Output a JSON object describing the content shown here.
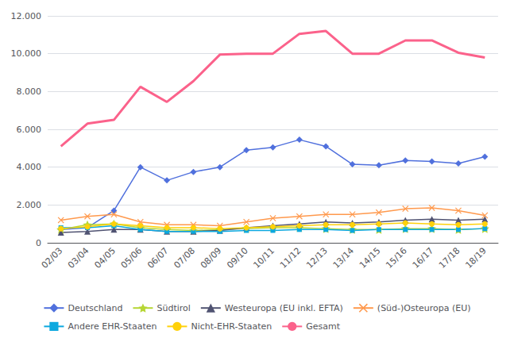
{
  "chart_data": {
    "type": "line",
    "categories": [
      "02/03",
      "03/04",
      "04/05",
      "05/06",
      "06/07",
      "07/08",
      "08/09",
      "09/10",
      "10/11",
      "11/12",
      "12/13",
      "13/14",
      "14/15",
      "15/16",
      "16/17",
      "17/18",
      "18/19"
    ],
    "series": [
      {
        "name": "Deutschland",
        "marker": "diamond",
        "values": [
          700,
          800,
          1700,
          4000,
          3300,
          3750,
          4000,
          4900,
          5050,
          5450,
          5100,
          4150,
          4100,
          4350,
          4300,
          4200,
          4550
        ]
      },
      {
        "name": "Südtirol",
        "marker": "star",
        "values": [
          700,
          950,
          1000,
          800,
          700,
          650,
          700,
          750,
          800,
          800,
          750,
          700,
          700,
          750,
          750,
          700,
          750
        ]
      },
      {
        "name": "Westeuropa (EU inkl. EFTA)",
        "marker": "triangle",
        "values": [
          550,
          600,
          700,
          700,
          600,
          600,
          650,
          800,
          900,
          1000,
          1100,
          1050,
          1100,
          1200,
          1250,
          1200,
          1250
        ]
      },
      {
        "name": "(Süd-)Osteuropa (EU)",
        "marker": "x",
        "values": [
          1200,
          1400,
          1500,
          1100,
          950,
          950,
          900,
          1100,
          1300,
          1400,
          1500,
          1500,
          1600,
          1800,
          1850,
          1700,
          1450
        ]
      },
      {
        "name": "Andere EHR-Staaten",
        "marker": "square",
        "values": [
          800,
          800,
          900,
          700,
          600,
          600,
          600,
          650,
          650,
          700,
          700,
          650,
          700,
          700,
          700,
          700,
          750
        ]
      },
      {
        "name": "Nicht-EHR-Staaten",
        "marker": "circle",
        "values": [
          750,
          850,
          1000,
          900,
          800,
          800,
          750,
          800,
          850,
          900,
          950,
          950,
          1000,
          1050,
          1000,
          950,
          1000
        ]
      },
      {
        "name": "Gesamt",
        "marker": "none",
        "values": [
          5100,
          6300,
          6500,
          8250,
          7450,
          8550,
          9950,
          10000,
          10000,
          11050,
          11200,
          10000,
          10000,
          10700,
          10700,
          10050,
          9800
        ]
      }
    ],
    "ylim": [
      0,
      12000
    ],
    "yticks": [
      0,
      {
        "value": 2000,
        "label": "2.000"
      },
      {
        "value": 4000,
        "label": "4.000"
      },
      {
        "value": 6000,
        "label": "6.000"
      },
      {
        "value": 8000,
        "label": "8.000"
      },
      {
        "value": 10000,
        "label": "10.000"
      },
      {
        "value": 12000,
        "label": "12.000"
      }
    ],
    "grid": true,
    "legend": "bottom"
  }
}
